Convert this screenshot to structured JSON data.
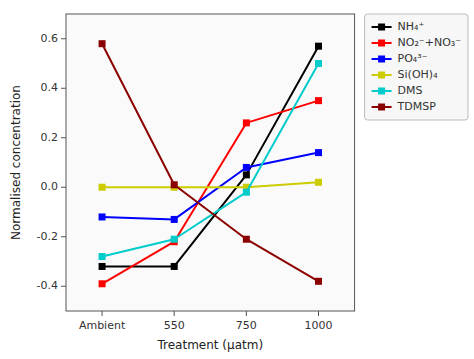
{
  "chart_data": {
    "type": "line",
    "categories": [
      "Ambient",
      "550",
      "750",
      "1000"
    ],
    "series": [
      {
        "name": "NH₄⁺",
        "color": "#000000",
        "values": [
          -0.32,
          -0.32,
          0.05,
          0.57
        ]
      },
      {
        "name": "NO₂⁻+NO₃⁻",
        "color": "#ff0000",
        "values": [
          -0.39,
          -0.22,
          0.26,
          0.35
        ]
      },
      {
        "name": "PO₄³⁻",
        "color": "#0000ff",
        "values": [
          -0.12,
          -0.13,
          0.08,
          0.14
        ]
      },
      {
        "name": "Si(OH)₄",
        "color": "#cccc00",
        "values": [
          0.0,
          0.0,
          0.0,
          0.02
        ]
      },
      {
        "name": "DMS",
        "color": "#00cccc",
        "values": [
          -0.28,
          -0.21,
          -0.02,
          0.5
        ]
      },
      {
        "name": "TDMSP",
        "color": "#8B0000",
        "values": [
          0.58,
          0.01,
          -0.21,
          -0.38
        ]
      }
    ],
    "xlabel": "Treatment (μatm)",
    "ylabel": "Normalised concentration",
    "ylim": [
      -0.5,
      0.7
    ],
    "yticks": [
      -0.4,
      -0.2,
      {
        "value": 0.0,
        "label": "0.0"
      },
      0.2,
      0.4,
      0.6
    ],
    "marker": "square",
    "legend": "upper right"
  }
}
